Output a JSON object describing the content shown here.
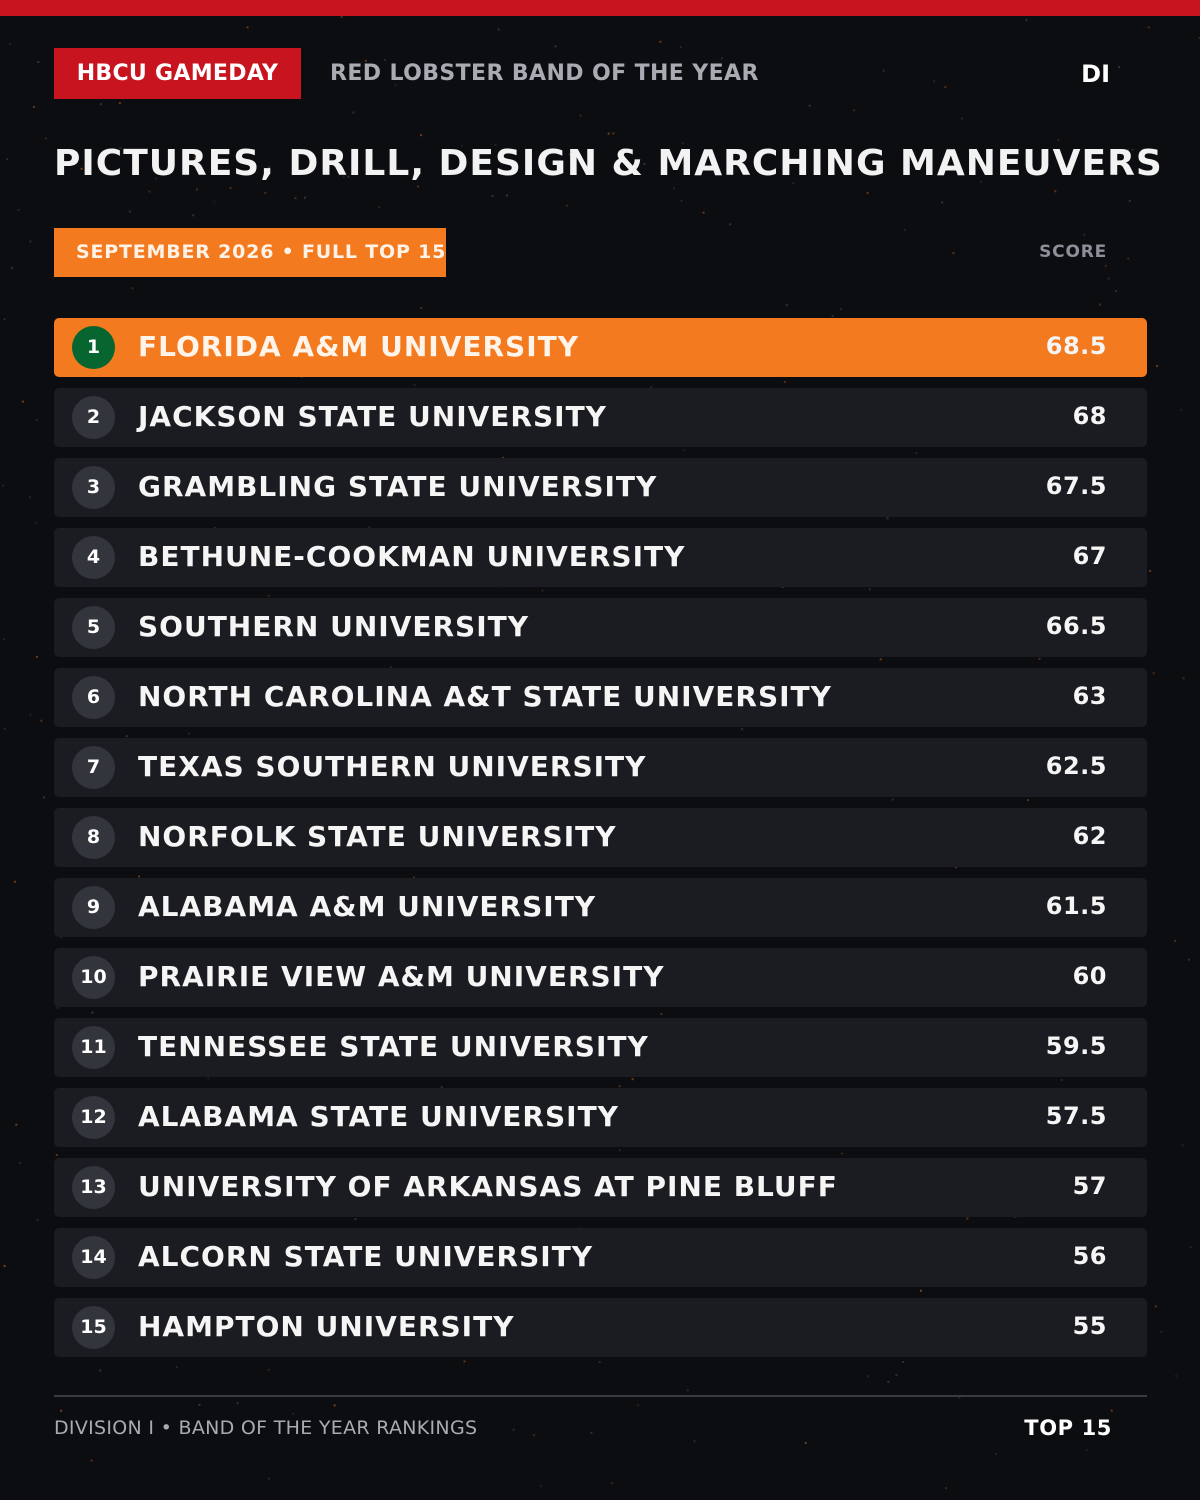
{
  "header": {
    "brand": "HBCU GAMEDAY",
    "award": "RED LOBSTER BAND OF THE YEAR",
    "division": "DI"
  },
  "category": "PICTURES, DRILL, DESIGN & MARCHING MANEUVERS",
  "date_badge": "SEPTEMBER 2026 • FULL TOP 15",
  "score_header": "SCORE",
  "rankings": [
    {
      "rank": "1",
      "school": "FLORIDA A&M UNIVERSITY",
      "score": "68.5"
    },
    {
      "rank": "2",
      "school": "JACKSON STATE UNIVERSITY",
      "score": "68"
    },
    {
      "rank": "3",
      "school": "GRAMBLING STATE UNIVERSITY",
      "score": "67.5"
    },
    {
      "rank": "4",
      "school": "BETHUNE-COOKMAN UNIVERSITY",
      "score": "67"
    },
    {
      "rank": "5",
      "school": "SOUTHERN UNIVERSITY",
      "score": "66.5"
    },
    {
      "rank": "6",
      "school": "NORTH CAROLINA A&T STATE UNIVERSITY",
      "score": "63"
    },
    {
      "rank": "7",
      "school": "TEXAS SOUTHERN UNIVERSITY",
      "score": "62.5"
    },
    {
      "rank": "8",
      "school": "NORFOLK STATE UNIVERSITY",
      "score": "62"
    },
    {
      "rank": "9",
      "school": "ALABAMA A&M UNIVERSITY",
      "score": "61.5"
    },
    {
      "rank": "10",
      "school": "PRAIRIE VIEW A&M UNIVERSITY",
      "score": "60"
    },
    {
      "rank": "11",
      "school": "TENNESSEE STATE UNIVERSITY",
      "score": "59.5"
    },
    {
      "rank": "12",
      "school": "ALABAMA STATE UNIVERSITY",
      "score": "57.5"
    },
    {
      "rank": "13",
      "school": "UNIVERSITY OF ARKANSAS AT PINE BLUFF",
      "score": "57"
    },
    {
      "rank": "14",
      "school": "ALCORN STATE UNIVERSITY",
      "score": "56"
    },
    {
      "rank": "15",
      "school": "HAMPTON UNIVERSITY",
      "score": "55"
    }
  ],
  "footer": {
    "left": "DIVISION I • BAND OF THE YEAR RANKINGS",
    "right": "TOP 15"
  },
  "colors": {
    "background": "#0c0d10",
    "brand_red": "#c8141f",
    "accent_orange": "#f47a20",
    "leader_green": "#07652f",
    "row_background": "#1b1c21",
    "rank_circle": "#33353d"
  }
}
